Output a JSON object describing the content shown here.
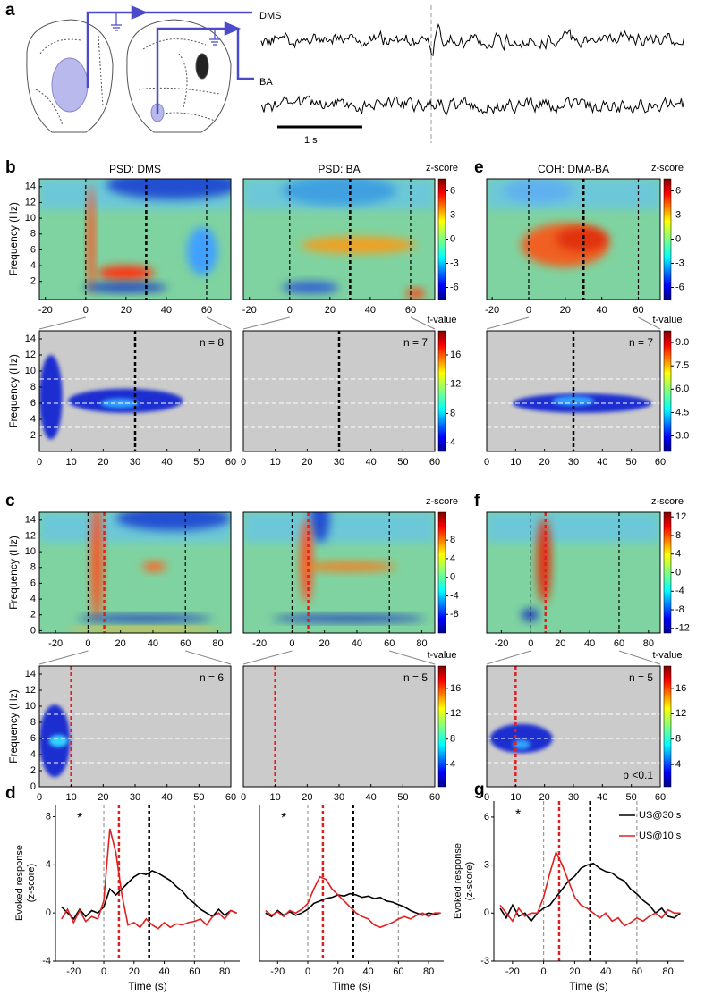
{
  "panel_a": {
    "letter": "a",
    "traces": [
      {
        "label": "DMS"
      },
      {
        "label": "BA"
      }
    ],
    "scale_bar": "1 s"
  },
  "heatmaps": [
    {
      "letter": "b",
      "title": "PSD: DMS",
      "xlim": [
        -23,
        72
      ],
      "xticks": [
        -20,
        0,
        20,
        40,
        60
      ],
      "ylim": [
        -0.3,
        15
      ],
      "yticks": [
        2,
        4,
        6,
        8,
        10,
        12,
        14
      ],
      "ylabel": "Frequency (Hz)",
      "events": [
        {
          "x": 0,
          "color": "#000000"
        },
        {
          "x": 30,
          "color": "#000000"
        },
        {
          "x": 60,
          "color": "#000000"
        }
      ]
    },
    {
      "title": "PSD: BA",
      "xlim": [
        -23,
        72
      ],
      "xticks": [
        -20,
        0,
        20,
        40,
        60
      ],
      "ylim": [
        -0.3,
        15
      ],
      "events": [
        {
          "x": 0,
          "color": "#000000"
        },
        {
          "x": 30,
          "color": "#000000"
        },
        {
          "x": 60,
          "color": "#000000"
        }
      ],
      "colorbar": {
        "label": "z-score",
        "lim": [
          -7.5,
          7.5
        ],
        "ticks": [
          6,
          3,
          0,
          -3,
          -6
        ]
      }
    },
    {
      "letter": "e",
      "title": "COH: DMA-BA",
      "xlim": [
        -23,
        72
      ],
      "xticks": [
        -20,
        0,
        20,
        40,
        60
      ],
      "ylim": [
        -0.3,
        15
      ],
      "events": [
        {
          "x": 0,
          "color": "#000000"
        },
        {
          "x": 30,
          "color": "#000000"
        },
        {
          "x": 60,
          "color": "#000000"
        }
      ],
      "colorbar": {
        "label": "z-score",
        "lim": [
          -7.5,
          7.5
        ],
        "ticks": [
          6,
          3,
          0,
          -3,
          -6
        ]
      }
    },
    {
      "xlim": [
        0,
        60
      ],
      "xticks": [
        0,
        10,
        20,
        30,
        40,
        50,
        60
      ],
      "ylim": [
        0,
        15
      ],
      "yticks": [
        2,
        4,
        6,
        8,
        10,
        12,
        14
      ],
      "ylabel": "Frequency (Hz)",
      "events": [
        {
          "x": 30,
          "color": "#000000"
        }
      ],
      "hlines": [
        3,
        6,
        9
      ],
      "n_label": "n = 8"
    },
    {
      "xlim": [
        0,
        60
      ],
      "xticks": [
        0,
        10,
        20,
        30,
        40,
        50,
        60
      ],
      "ylim": [
        0,
        15
      ],
      "events": [
        {
          "x": 30,
          "color": "#000000"
        }
      ],
      "hlines": [
        3,
        6,
        9
      ],
      "n_label": "n = 7",
      "colorbar": {
        "label": "t-value",
        "lim": [
          2.8,
          19.3
        ],
        "ticks": [
          16,
          12,
          8,
          4
        ]
      }
    },
    {
      "xlim": [
        0,
        60
      ],
      "xticks": [
        0,
        10,
        20,
        30,
        40,
        50,
        60
      ],
      "ylim": [
        0,
        15
      ],
      "events": [
        {
          "x": 30,
          "color": "#000000"
        }
      ],
      "hlines": [
        3,
        6,
        9
      ],
      "n_label": "n = 7",
      "colorbar": {
        "label": "t-value",
        "lim": [
          2,
          9.75
        ],
        "ticks": [
          {
            "value": 9,
            "label": "9.0"
          },
          7.5,
          {
            "value": 6,
            "label": "6.0"
          },
          4.5,
          {
            "value": 3,
            "label": "3.0"
          }
        ]
      }
    },
    {
      "letter": "c",
      "xlim": [
        -30,
        88
      ],
      "xticks": [
        -20,
        0,
        20,
        40,
        60,
        80
      ],
      "ylim": [
        -0.3,
        15
      ],
      "yticks": [
        0,
        2,
        4,
        6,
        8,
        10,
        12,
        14
      ],
      "ylabel": "Frequency (Hz)",
      "events": [
        {
          "x": 0,
          "color": "#000000"
        },
        {
          "x": 10,
          "color": "#e02020"
        },
        {
          "x": 60,
          "color": "#000000"
        }
      ]
    },
    {
      "xlim": [
        -30,
        88
      ],
      "xticks": [
        -20,
        0,
        20,
        40,
        60,
        80
      ],
      "ylim": [
        -0.3,
        15
      ],
      "events": [
        {
          "x": 0,
          "color": "#000000"
        },
        {
          "x": 10,
          "color": "#e02020"
        },
        {
          "x": 60,
          "color": "#000000"
        }
      ],
      "colorbar": {
        "label": "z-score",
        "lim": [
          -12,
          14
        ],
        "ticks": [
          8,
          4,
          0,
          -4,
          -8
        ]
      }
    },
    {
      "letter": "f",
      "xlim": [
        -30,
        88
      ],
      "xticks": [
        -20,
        0,
        20,
        40,
        60,
        80
      ],
      "ylim": [
        -0.3,
        15
      ],
      "events": [
        {
          "x": 0,
          "color": "#000000"
        },
        {
          "x": 10,
          "color": "#e02020"
        },
        {
          "x": 60,
          "color": "#000000"
        }
      ],
      "colorbar": {
        "label": "z-score",
        "lim": [
          -13,
          13
        ],
        "ticks": [
          12,
          8,
          4,
          0,
          -4,
          -8,
          -12
        ]
      }
    },
    {
      "xlim": [
        0,
        60
      ],
      "xticks": [
        0,
        10,
        20,
        30,
        40,
        50,
        60
      ],
      "ylim": [
        0,
        15
      ],
      "yticks": [
        0,
        2,
        4,
        6,
        8,
        10,
        12,
        14
      ],
      "ylabel": "Frequency (Hz)",
      "events": [
        {
          "x": 10,
          "color": "#e02020"
        }
      ],
      "hlines": [
        3,
        6,
        9
      ],
      "n_label": "n = 6"
    },
    {
      "xlim": [
        0,
        60
      ],
      "xticks": [
        0,
        10,
        20,
        30,
        40,
        50,
        60
      ],
      "ylim": [
        0,
        15
      ],
      "events": [
        {
          "x": 10,
          "color": "#e02020"
        }
      ],
      "n_label": "n = 5",
      "colorbar": {
        "label": "t-value",
        "lim": [
          0.5,
          19.5
        ],
        "ticks": [
          16,
          12,
          8,
          4
        ]
      }
    },
    {
      "xlim": [
        0,
        60
      ],
      "xticks": [
        0,
        10,
        20,
        30,
        40,
        50,
        60
      ],
      "ylim": [
        0,
        15
      ],
      "events": [
        {
          "x": 10,
          "color": "#e02020"
        }
      ],
      "hlines": [
        3,
        6,
        9
      ],
      "n_label": "n = 5",
      "p_label": "p <0.1",
      "colorbar": {
        "label": "t-value",
        "lim": [
          0.5,
          19.5
        ],
        "ticks": [
          16,
          12,
          8,
          4
        ]
      }
    }
  ],
  "line_plots": [
    {
      "letter": "d",
      "type": "line",
      "xlim": [
        -32,
        90
      ],
      "xticks": [
        -20,
        0,
        20,
        40,
        60,
        80
      ],
      "ylim": [
        -4,
        9
      ],
      "yticks": [
        -4,
        0,
        4,
        8
      ],
      "ylabel": [
        "Evoked response",
        "(z-score)"
      ],
      "xlabel": "Time (s)",
      "asterisk": "*",
      "events": [
        {
          "x": 0,
          "color": "#999999"
        },
        {
          "x": 10,
          "color": "#e02020"
        },
        {
          "x": 30,
          "color": "#000000"
        },
        {
          "x": 60,
          "color": "#999999"
        }
      ],
      "x": [
        -28,
        -24,
        -20,
        -16,
        -12,
        -8,
        -4,
        0,
        4,
        8,
        12,
        16,
        20,
        24,
        28,
        32,
        36,
        40,
        44,
        48,
        52,
        56,
        60,
        64,
        68,
        72,
        76,
        80,
        84,
        88
      ],
      "series": [
        {
          "color": "#000000",
          "values": [
            0.5,
            0,
            -0.5,
            0.3,
            -0.3,
            0.2,
            0,
            0.5,
            2,
            1.5,
            2,
            2.5,
            3,
            3.3,
            3.2,
            3.5,
            3.3,
            3,
            2.7,
            2.2,
            1.8,
            1.2,
            0.8,
            0.3,
            0,
            -0.3,
            0.3,
            -0.2,
            0.2,
            0
          ]
        },
        {
          "color": "#e02020",
          "values": [
            -0.5,
            0.3,
            -0.8,
            0.2,
            -0.7,
            -0.3,
            -0.5,
            1,
            7,
            5,
            1.5,
            -1,
            -0.8,
            -1.2,
            -0.5,
            -1,
            -1.3,
            -0.8,
            -1.2,
            -0.9,
            -1,
            -0.8,
            -0.7,
            -0.5,
            -1,
            -0.3,
            0,
            -0.5,
            0.2,
            0
          ]
        }
      ]
    },
    {
      "type": "line",
      "xlim": [
        -32,
        90
      ],
      "xticks": [
        -20,
        0,
        20,
        40,
        60,
        80
      ],
      "ylim": [
        -4,
        9
      ],
      "xlabel": "Time (s)",
      "asterisk": "*",
      "events": [
        {
          "x": 0,
          "color": "#999999"
        },
        {
          "x": 10,
          "color": "#e02020"
        },
        {
          "x": 30,
          "color": "#000000"
        },
        {
          "x": 60,
          "color": "#999999"
        }
      ],
      "x": [
        -28,
        -24,
        -20,
        -16,
        -12,
        -8,
        -4,
        0,
        4,
        8,
        12,
        16,
        20,
        24,
        28,
        32,
        36,
        40,
        44,
        48,
        52,
        56,
        60,
        64,
        68,
        72,
        76,
        80,
        84,
        88
      ],
      "series": [
        {
          "color": "#000000",
          "values": [
            0,
            -0.3,
            0.2,
            -0.2,
            0.1,
            -0.2,
            0,
            0.3,
            0.8,
            1,
            1.2,
            1.3,
            1.5,
            1.4,
            1.6,
            1.5,
            1.3,
            1.4,
            1.2,
            1.3,
            1,
            0.9,
            0.7,
            0.5,
            0.2,
            0,
            -0.2,
            0,
            -0.1,
            0
          ]
        },
        {
          "color": "#e02020",
          "values": [
            0.2,
            -0.2,
            0.1,
            -0.3,
            0.2,
            0,
            0.3,
            0.8,
            2,
            3,
            2.8,
            2,
            1.5,
            1,
            0.5,
            0,
            -0.3,
            -0.5,
            -1,
            -1.2,
            -1,
            -0.8,
            -0.5,
            -0.3,
            -0.5,
            -0.2,
            0,
            -0.3,
            0,
            0
          ]
        }
      ]
    },
    {
      "letter": "g",
      "type": "line",
      "xlim": [
        -32,
        90
      ],
      "xticks": [
        -20,
        0,
        20,
        40,
        60,
        80
      ],
      "ylim": [
        -3,
        7
      ],
      "yticks": [
        -3,
        0,
        3,
        6
      ],
      "ylabel": [
        "Evoked response",
        "(z-score)"
      ],
      "xlabel": "Time (s)",
      "asterisk": "*",
      "events": [
        {
          "x": 0,
          "color": "#999999"
        },
        {
          "x": 10,
          "color": "#e02020"
        },
        {
          "x": 30,
          "color": "#000000"
        },
        {
          "x": 60,
          "color": "#999999"
        }
      ],
      "x": [
        -28,
        -24,
        -20,
        -16,
        -12,
        -8,
        -4,
        0,
        4,
        8,
        12,
        16,
        20,
        24,
        28,
        32,
        36,
        40,
        44,
        48,
        52,
        56,
        60,
        64,
        68,
        72,
        76,
        80,
        84,
        88
      ],
      "series": [
        {
          "name": "US@30 s",
          "color": "#000000",
          "values": [
            0.3,
            -0.3,
            0.5,
            -0.2,
            0,
            -0.5,
            0,
            0.3,
            0.5,
            1,
            1.5,
            2,
            2.3,
            2.8,
            3,
            3.1,
            2.8,
            2.6,
            2.5,
            2.2,
            2,
            1.5,
            1.2,
            0.8,
            0.5,
            0,
            0.3,
            -0.2,
            -0.3,
            0
          ]
        },
        {
          "name": "US@10 s",
          "color": "#e02020",
          "values": [
            0.5,
            0,
            -0.5,
            0.3,
            -0.2,
            0,
            0,
            1,
            2.5,
            3.8,
            3,
            2,
            1,
            0.5,
            0.3,
            0,
            -0.3,
            0,
            -0.5,
            -0.3,
            -0.8,
            -0.6,
            -0.3,
            -0.5,
            -0.2,
            0,
            -0.3,
            0.2,
            0,
            0
          ]
        }
      ]
    }
  ]
}
